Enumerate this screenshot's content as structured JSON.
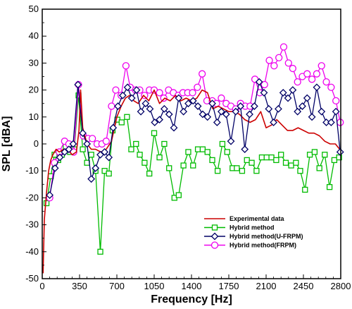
{
  "chart_data": {
    "type": "line",
    "title": "",
    "xlabel": "Frequency [Hz]",
    "ylabel": "SPL [dBA]",
    "xlim": [
      0,
      2800
    ],
    "ylim": [
      -50,
      50
    ],
    "x_ticks": [
      0,
      350,
      700,
      1050,
      1400,
      1750,
      2100,
      2450,
      2800
    ],
    "y_ticks": [
      -50,
      -40,
      -30,
      -20,
      -10,
      0,
      10,
      20,
      30,
      40,
      50
    ],
    "x_tick_labels": [
      "0",
      "350",
      "700",
      "1050",
      "1400",
      "1750",
      "2100",
      "2450",
      "2800"
    ],
    "y_tick_labels": [
      "-50",
      "-40",
      "-30",
      "-20",
      "-10",
      "0",
      "10",
      "20",
      "30",
      "40",
      "50"
    ],
    "grid": false,
    "legend_position": "bottom-right",
    "colors": {
      "experimental": "#cc0000",
      "hybrid": "#00bb00",
      "ufrpm": "#000066",
      "frpm": "#ee00ee"
    },
    "series": [
      {
        "name": "Experimental data",
        "style": "line",
        "x": [
          8,
          20,
          40,
          60,
          80,
          100,
          130,
          160,
          200,
          240,
          280,
          320,
          345,
          360,
          380,
          420,
          460,
          500,
          550,
          600,
          650,
          700,
          740,
          780,
          820,
          860,
          900,
          950,
          1000,
          1050,
          1100,
          1150,
          1200,
          1250,
          1300,
          1350,
          1400,
          1450,
          1500,
          1550,
          1600,
          1650,
          1700,
          1750,
          1800,
          1850,
          1900,
          1950,
          2000,
          2050,
          2100,
          2150,
          2200,
          2250,
          2300,
          2350,
          2400,
          2450,
          2500,
          2550,
          2600,
          2650,
          2700,
          2750,
          2790
        ],
        "y": [
          -48,
          -28,
          -18,
          -10,
          -6,
          -4,
          -2,
          -3,
          -2,
          -2,
          -4,
          -3,
          5,
          20,
          6,
          0,
          -2,
          -2,
          -3,
          -2,
          1,
          10,
          14,
          17,
          18,
          16,
          15,
          18,
          16,
          20,
          15,
          17,
          16,
          18,
          16,
          17,
          16,
          17,
          20,
          19,
          13,
          14,
          13,
          12,
          12,
          11,
          9,
          8,
          9,
          12,
          6,
          7,
          9,
          7,
          5,
          5,
          6,
          5,
          4,
          4,
          3,
          1,
          0,
          0,
          -2
        ]
      },
      {
        "name": "Hybrid method",
        "style": "square",
        "x": [
          40,
          80,
          115,
          150,
          185,
          220,
          260,
          300,
          340,
          380,
          420,
          460,
          500,
          545,
          585,
          625,
          660,
          705,
          745,
          795,
          835,
          880,
          915,
          960,
          1005,
          1050,
          1100,
          1145,
          1190,
          1240,
          1280,
          1325,
          1370,
          1415,
          1460,
          1505,
          1550,
          1595,
          1645,
          1690,
          1735,
          1785,
          1825,
          1875,
          1920,
          1965,
          2010,
          2060,
          2105,
          2150,
          2195,
          2240,
          2285,
          2335,
          2380,
          2420,
          2465,
          2510,
          2555,
          2600,
          2650,
          2695,
          2740,
          2785
        ],
        "y": [
          -22,
          -12,
          -4,
          -6,
          -4,
          -1,
          -3,
          -2,
          18,
          -2,
          -7,
          -4,
          -10,
          -40,
          -10,
          -11,
          5,
          9,
          8,
          10,
          -2,
          0,
          -4,
          -7,
          -11,
          4,
          -5,
          0,
          -9,
          -20,
          -19,
          -8,
          -3,
          -8,
          -2,
          -2,
          -3,
          -6,
          -10,
          0,
          -3,
          -9,
          -9,
          -10,
          -6,
          -7,
          -10,
          -5,
          -5,
          -5,
          -6,
          -4,
          -7,
          -8,
          -7,
          -10,
          -17,
          -4,
          -3,
          -9,
          -4,
          -16,
          -6,
          -5
        ]
      },
      {
        "name": "Hybrid method(U-FRPM)",
        "style": "diamond",
        "x": [
          70,
          120,
          165,
          210,
          250,
          290,
          335,
          380,
          420,
          460,
          500,
          545,
          585,
          625,
          665,
          710,
          755,
          800,
          840,
          885,
          925,
          970,
          1010,
          1055,
          1100,
          1145,
          1190,
          1235,
          1280,
          1325,
          1370,
          1415,
          1460,
          1505,
          1550,
          1595,
          1640,
          1680,
          1725,
          1770,
          1815,
          1860,
          1900,
          1945,
          1990,
          2035,
          2080,
          2125,
          2170,
          2215,
          2260,
          2305,
          2350,
          2395,
          2440,
          2485,
          2530,
          2575,
          2620,
          2665,
          2710,
          2755,
          2795
        ],
        "y": [
          -19,
          -9,
          -5,
          -3,
          -2,
          0,
          22,
          4,
          0,
          -13,
          -9,
          -4,
          -3,
          -5,
          6,
          14,
          18,
          21,
          17,
          20,
          12,
          15,
          13,
          8,
          9,
          13,
          11,
          6,
          17,
          12,
          15,
          16,
          14,
          11,
          10,
          15,
          8,
          12,
          11,
          1,
          12,
          14,
          -2,
          11,
          14,
          23,
          19,
          13,
          8,
          13,
          19,
          17,
          20,
          12,
          14,
          17,
          10,
          21,
          12,
          8,
          8,
          12,
          -3
        ]
      },
      {
        "name": "Hybrid method(FRPM)",
        "style": "circle",
        "x": [
          70,
          115,
          160,
          210,
          250,
          295,
          340,
          385,
          430,
          470,
          515,
          560,
          600,
          650,
          690,
          740,
          785,
          825,
          875,
          915,
          960,
          1005,
          1050,
          1100,
          1140,
          1185,
          1230,
          1275,
          1320,
          1365,
          1410,
          1455,
          1500,
          1545,
          1595,
          1635,
          1680,
          1725,
          1770,
          1815,
          1860,
          1905,
          1950,
          1995,
          2040,
          2085,
          2130,
          2175,
          2220,
          2265,
          2310,
          2350,
          2395,
          2440,
          2485,
          2530,
          2575,
          2620,
          2665,
          2710,
          2755,
          2795
        ],
        "y": [
          -20,
          -7,
          -3,
          1,
          0,
          -3,
          22,
          3,
          2,
          2,
          0,
          0,
          1,
          14,
          20,
          18,
          29,
          21,
          20,
          20,
          18,
          20,
          20,
          19,
          17,
          20,
          19,
          18,
          19,
          19,
          19,
          21,
          26,
          16,
          16,
          15,
          17,
          15,
          14,
          13,
          15,
          14,
          14,
          24,
          19,
          22,
          31,
          29,
          32,
          36,
          30,
          28,
          23,
          25,
          26,
          24,
          26,
          29,
          23,
          21,
          16,
          8
        ]
      }
    ]
  }
}
